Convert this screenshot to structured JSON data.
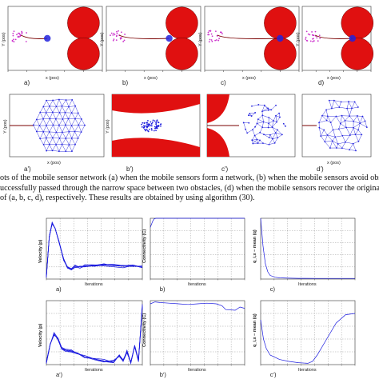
{
  "caption": {
    "line1": "ots of the mobile sensor network (a) when the mobile sensors form a network, (b) when the mobile sensors avoid obs",
    "line2": "uccessfully passed through the narrow space between two obstacles, (d) when the mobile sensors recover the original",
    "line3": "of (a, b, c, d), respectively. These results are obtained by using algorithm (30)."
  },
  "snapshots_top": [
    {
      "id": "a",
      "label": "a)",
      "xlabel": "x (pos)",
      "ylabel": "Y (pos)",
      "progress": 0.4
    },
    {
      "id": "b",
      "label": "b)",
      "xlabel": "x (pos)",
      "ylabel": "Y (pos)",
      "progress": 0.7
    },
    {
      "id": "c",
      "label": "c)",
      "xlabel": "x (pos)",
      "ylabel": "Y (pos)",
      "progress": 0.86
    },
    {
      "id": "d",
      "label": "d)",
      "xlabel": "x (pos)",
      "ylabel": "Y (pos)",
      "progress": 0.8
    }
  ],
  "snapshots_bottom": [
    {
      "id": "a2",
      "label": "a')",
      "xlabel": "x (pos)",
      "ylabel": "Y (pos)"
    },
    {
      "id": "b2",
      "label": "b')",
      "xlabel": "",
      "ylabel": "Y (pos)"
    },
    {
      "id": "c2",
      "label": "c')",
      "xlabel": "",
      "ylabel": ""
    },
    {
      "id": "d2",
      "label": "d')",
      "xlabel": "x (pos)",
      "ylabel": ""
    }
  ],
  "colors": {
    "obstacle": "#e01010",
    "sensor": "#2222dd",
    "trajectory": "#7a0000",
    "start": "#cc33cc",
    "curve": "#1a1adf"
  },
  "chart_data": [
    {
      "type": "line",
      "label": "a)",
      "xlabel": "Iterations",
      "ylabel": "Velocity (p)",
      "xlim": [
        0,
        1000
      ],
      "ylim": [
        0,
        5
      ],
      "series": [
        {
          "x": [
            0,
            30,
            60,
            90,
            130,
            180,
            220,
            260,
            300,
            350,
            400,
            500,
            600,
            700,
            800,
            900,
            1000
          ],
          "y": [
            0.2,
            3.5,
            4.6,
            4.2,
            3.1,
            1.6,
            0.9,
            0.8,
            1.05,
            1.0,
            1.1,
            1.05,
            1.15,
            1.1,
            1.05,
            1.05,
            1.05
          ]
        }
      ]
    },
    {
      "type": "line",
      "label": "b)",
      "xlabel": "Iterations",
      "ylabel": "Connectivity (C)",
      "xlim": [
        0,
        1000
      ],
      "ylim": [
        0,
        1
      ],
      "series": [
        {
          "x": [
            0,
            25,
            40,
            60,
            100,
            200,
            400,
            600,
            800,
            1000
          ],
          "y": [
            0.85,
            0.95,
            0.99,
            1.0,
            1.0,
            1.0,
            1.0,
            1.0,
            1.0,
            1.0
          ]
        }
      ]
    },
    {
      "type": "line",
      "label": "c)",
      "xlabel": "Iterations",
      "ylabel": "q_i,x − mean (q)",
      "xlim": [
        0,
        1000
      ],
      "ylim": [
        0,
        1
      ],
      "series": [
        {
          "x": [
            0,
            25,
            50,
            75,
            100,
            150,
            200,
            300,
            400,
            600,
            800,
            1000
          ],
          "y": [
            1.0,
            0.55,
            0.25,
            0.12,
            0.06,
            0.03,
            0.02,
            0.015,
            0.012,
            0.01,
            0.01,
            0.01
          ]
        }
      ]
    },
    {
      "type": "line",
      "label": "a')",
      "xlabel": "Iterations",
      "ylabel": "Velocity (p)",
      "xlim": [
        0,
        1000
      ],
      "ylim": [
        0,
        5
      ],
      "series": [
        {
          "x": [
            0,
            40,
            80,
            120,
            160,
            200,
            260,
            320,
            400,
            500,
            600,
            700,
            760,
            800,
            840,
            880,
            920,
            960,
            1000
          ],
          "y": [
            0.2,
            1.6,
            2.4,
            2.0,
            1.3,
            1.15,
            1.05,
            0.9,
            0.6,
            0.45,
            0.3,
            0.25,
            0.7,
            0.3,
            1.0,
            0.2,
            1.4,
            0.3,
            4.6
          ]
        }
      ]
    },
    {
      "type": "line",
      "label": "b')",
      "xlabel": "Iterations",
      "ylabel": "Connectivity (C)",
      "xlim": [
        0,
        1000
      ],
      "ylim": [
        0,
        1
      ],
      "series": [
        {
          "x": [
            0,
            50,
            100,
            200,
            300,
            400,
            500,
            600,
            700,
            760,
            800,
            900,
            950,
            1000
          ],
          "y": [
            0.95,
            0.98,
            0.97,
            0.96,
            0.95,
            0.94,
            0.95,
            0.96,
            0.95,
            0.92,
            0.86,
            0.85,
            0.9,
            0.88
          ]
        }
      ]
    },
    {
      "type": "line",
      "label": "c')",
      "xlabel": "Iterations",
      "ylabel": "q_i,x − mean (q)",
      "xlim": [
        0,
        1000
      ],
      "ylim": [
        0,
        1
      ],
      "series": [
        {
          "x": [
            0,
            30,
            60,
            100,
            200,
            300,
            400,
            500,
            550,
            600,
            700,
            800,
            900,
            1000
          ],
          "y": [
            0.7,
            0.4,
            0.25,
            0.15,
            0.08,
            0.05,
            0.03,
            0.02,
            0.05,
            0.15,
            0.4,
            0.65,
            0.78,
            0.8
          ]
        }
      ]
    }
  ]
}
